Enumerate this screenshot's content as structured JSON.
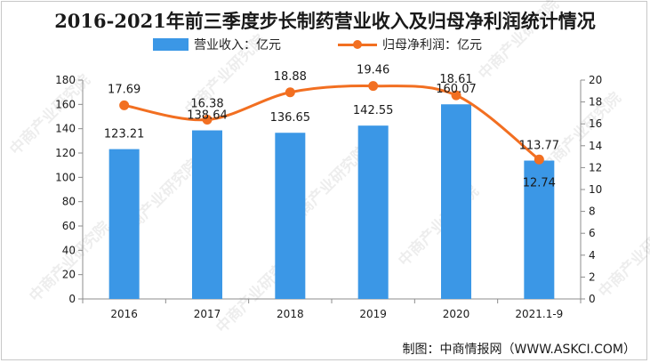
{
  "chart_data": {
    "type": "bar+line",
    "title": "2016-2021年前三季度步长制药营业收入及归母净利润统计情况",
    "categories": [
      "2016",
      "2017",
      "2018",
      "2019",
      "2020",
      "2021.1-9"
    ],
    "series": [
      {
        "name": "营业收入：亿元",
        "type": "bar",
        "axis": "left",
        "color": "#3b97e6",
        "values": [
          123.21,
          138.64,
          136.65,
          142.55,
          160.07,
          113.77
        ],
        "labels": [
          "123.21",
          "138.64",
          "136.65",
          "142.55",
          "160.07",
          "113.77"
        ]
      },
      {
        "name": "归母净利润：亿元",
        "type": "line",
        "axis": "right",
        "color": "#f26f21",
        "values": [
          17.69,
          16.38,
          18.88,
          19.46,
          18.61,
          12.74
        ],
        "labels": [
          "17.69",
          "16.38",
          "18.88",
          "19.46",
          "18.61",
          "12.74"
        ]
      }
    ],
    "y_left": {
      "min": 0,
      "max": 180,
      "step": 20,
      "ticks": [
        "0",
        "20",
        "40",
        "60",
        "80",
        "100",
        "120",
        "140",
        "160",
        "180"
      ]
    },
    "y_right": {
      "min": 0,
      "max": 20,
      "step": 2,
      "ticks": [
        "0",
        "2",
        "4",
        "6",
        "8",
        "10",
        "12",
        "14",
        "16",
        "18",
        "20"
      ]
    },
    "grid": false,
    "legend_position": "top-center"
  },
  "source": "制图：中商情报网（WWW.ASKCI.COM）",
  "watermark": "中商产业研究院"
}
